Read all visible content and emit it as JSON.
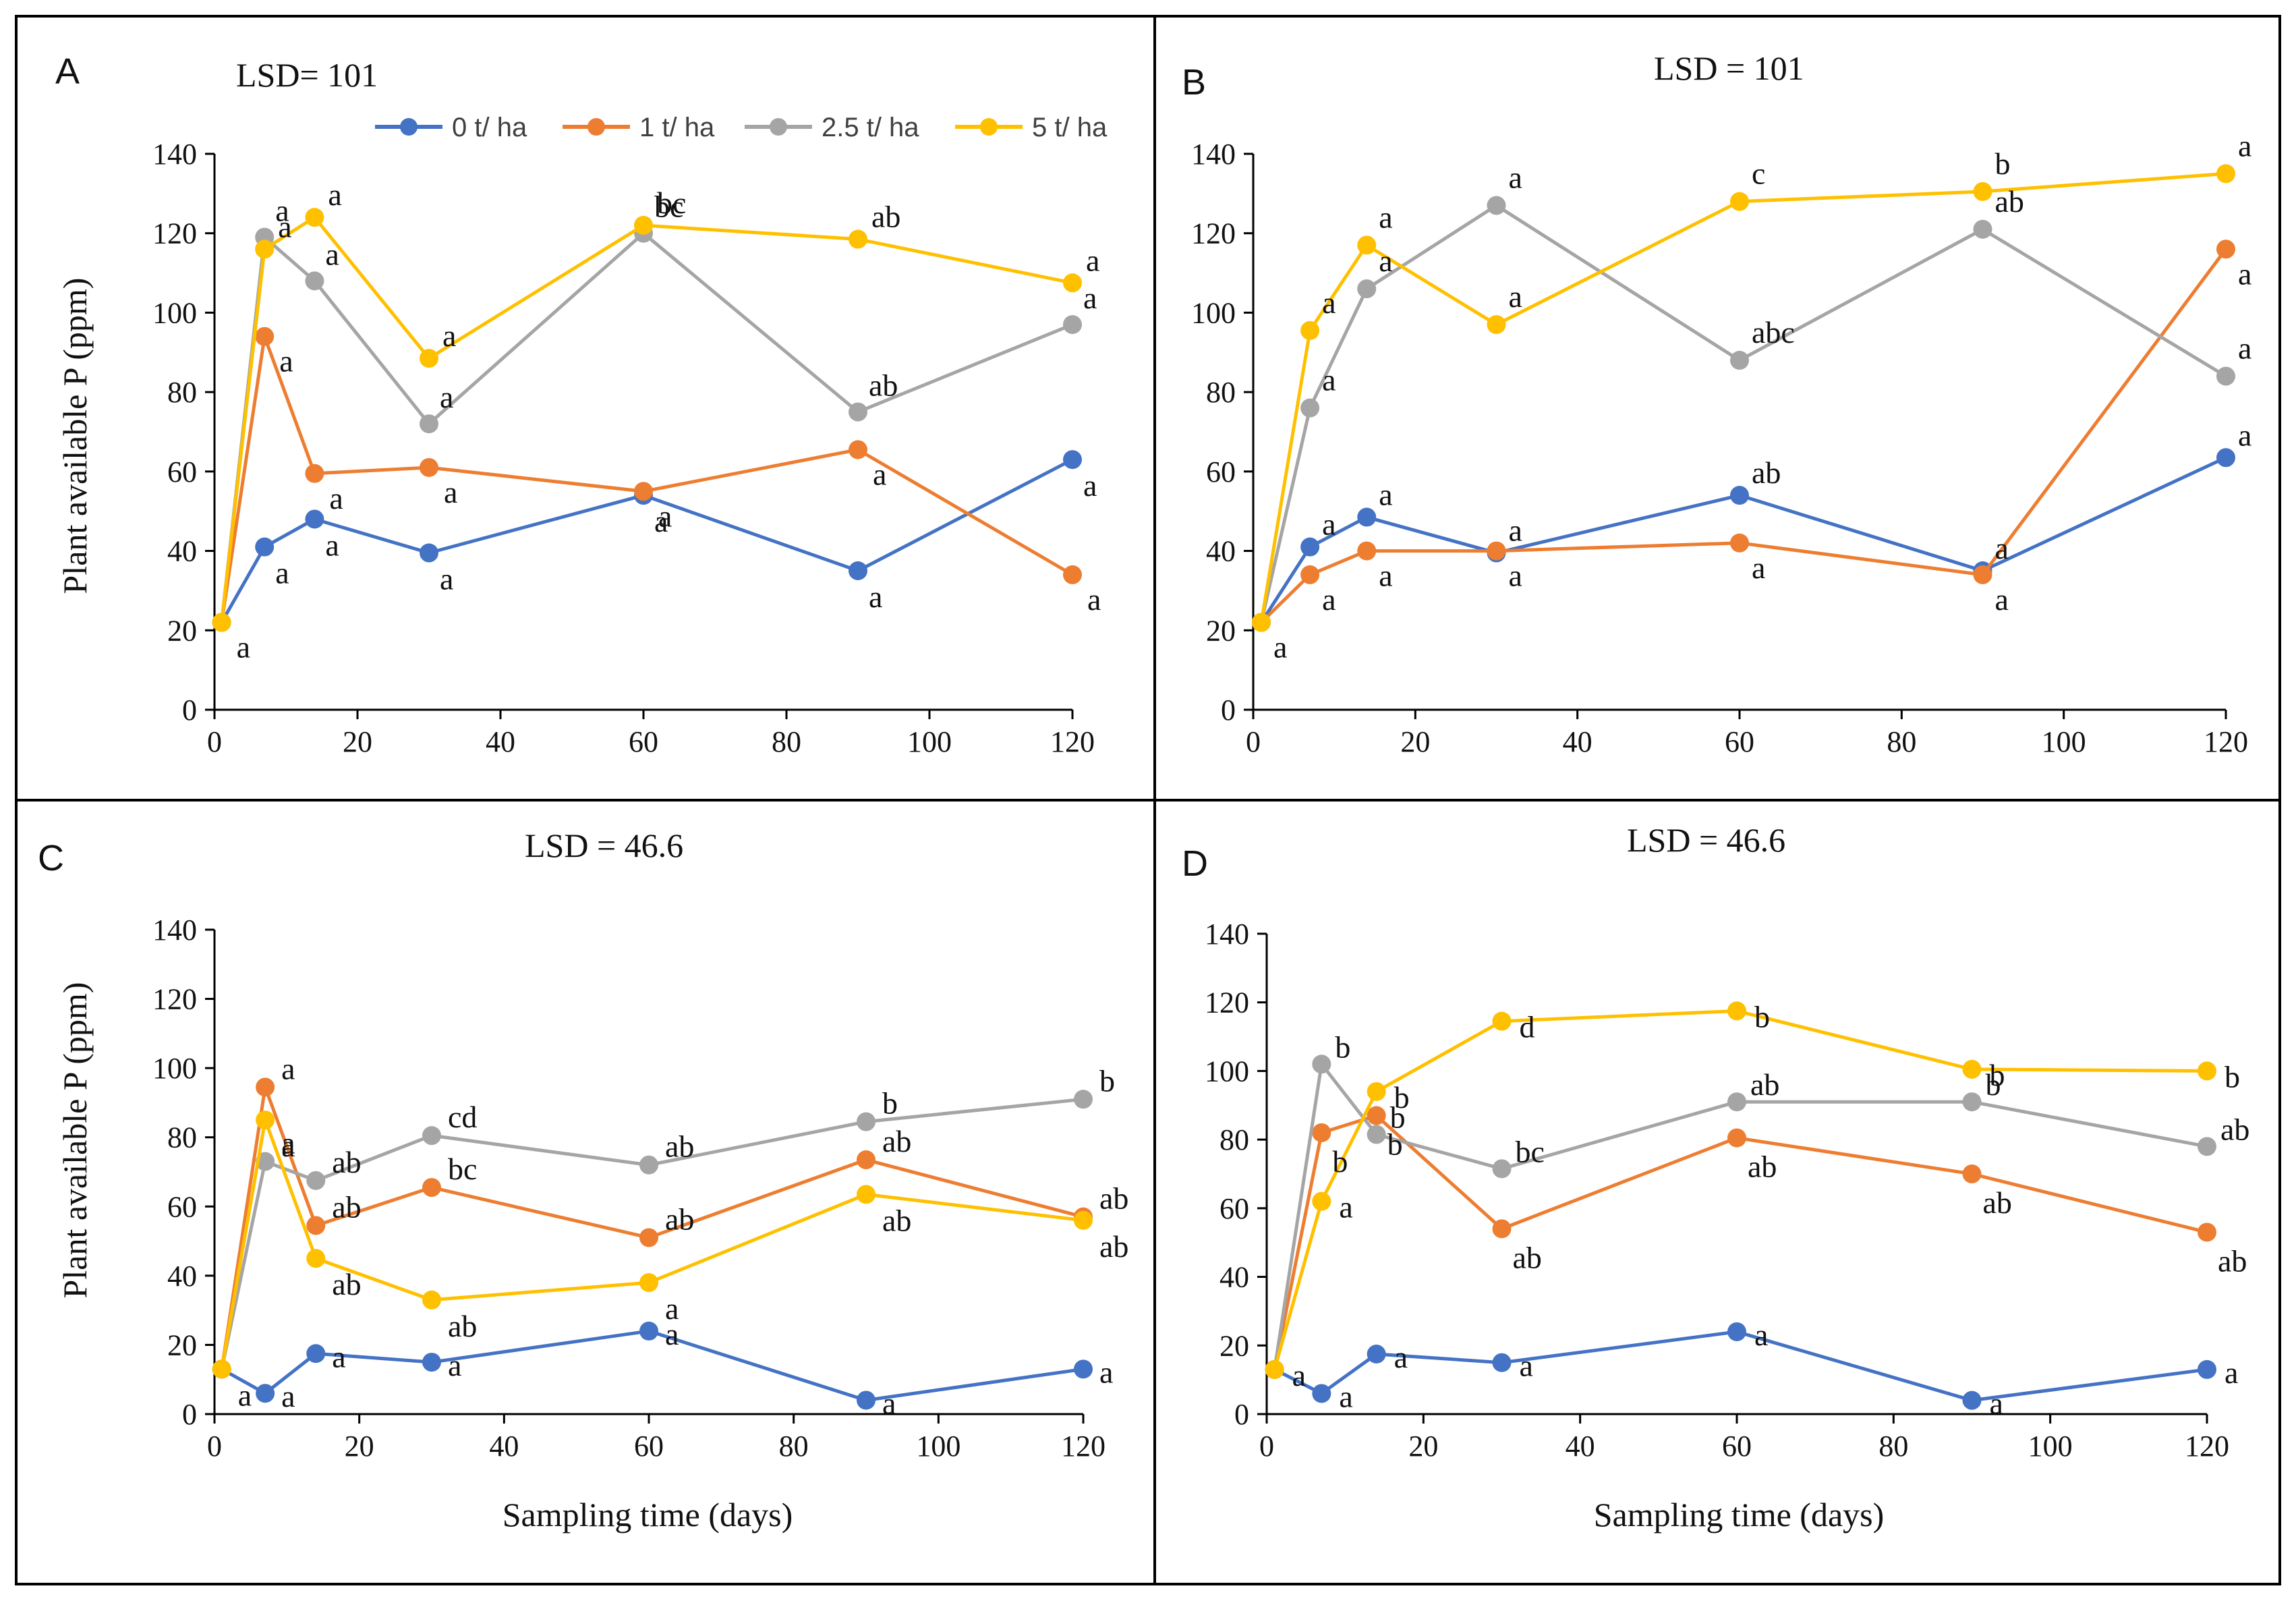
{
  "figure": {
    "legend": [
      {
        "label": "0 t/ ha",
        "color": "#4472C4"
      },
      {
        "label": "1 t/ ha",
        "color": "#ED7D31"
      },
      {
        "label": "2.5 t/ ha",
        "color": "#A5A5A5"
      },
      {
        "label": "5 t/ ha",
        "color": "#FFC000"
      }
    ],
    "y_axis_title": "Plant available P (ppm)",
    "x_axis_title": "Sampling time (days)"
  },
  "chart_data": [
    {
      "type": "line",
      "panel": "A",
      "title": "LSD= 101",
      "xlabel": "",
      "ylabel": "Plant available P (ppm)",
      "xlim": [
        0,
        120
      ],
      "ylim": [
        0,
        140
      ],
      "x_ticks": [
        0,
        20,
        40,
        60,
        80,
        100,
        120
      ],
      "y_ticks": [
        0,
        20,
        40,
        60,
        80,
        100,
        120,
        140
      ],
      "x": [
        1,
        7,
        14,
        30,
        60,
        90,
        120
      ],
      "series": [
        {
          "name": "0 t/ ha",
          "values": [
            22,
            41,
            48,
            39.5,
            54,
            35,
            63
          ],
          "labels": [
            "",
            "a",
            "a",
            "a",
            "a",
            "a",
            "a"
          ]
        },
        {
          "name": "1 t/ ha",
          "values": [
            22,
            94,
            59.5,
            61,
            55,
            65.5,
            34
          ],
          "labels": [
            "a",
            "a",
            "a",
            "a",
            "a",
            "a",
            "a"
          ]
        },
        {
          "name": "2.5 t/ ha",
          "values": [
            22,
            119,
            108,
            72,
            120,
            75,
            97
          ],
          "labels": [
            "",
            "a",
            "a",
            "a",
            "bc",
            "ab",
            "a"
          ]
        },
        {
          "name": "5 t/ ha",
          "values": [
            22,
            116,
            124,
            88.5,
            122,
            118.5,
            107.5
          ],
          "labels": [
            "",
            "a",
            "a",
            "a",
            "bc",
            "ab",
            "a"
          ]
        }
      ]
    },
    {
      "type": "line",
      "panel": "B",
      "title": "LSD = 101",
      "xlabel": "",
      "ylabel": "",
      "xlim": [
        0,
        120
      ],
      "ylim": [
        0,
        140
      ],
      "x_ticks": [
        0,
        20,
        40,
        60,
        80,
        100,
        120
      ],
      "y_ticks": [
        0,
        20,
        40,
        60,
        80,
        100,
        120,
        140
      ],
      "x": [
        1,
        7,
        14,
        30,
        60,
        90,
        120
      ],
      "series": [
        {
          "name": "0 t/ ha",
          "values": [
            22,
            41,
            48.5,
            39.5,
            54,
            35,
            63.5
          ],
          "labels": [
            "",
            "a",
            "a",
            "a",
            "ab",
            "a",
            "a"
          ]
        },
        {
          "name": "1 t/ ha",
          "values": [
            22,
            34,
            40,
            40,
            42,
            34,
            116
          ],
          "labels": [
            "a",
            "a",
            "a",
            "a",
            "a",
            "a",
            "a"
          ]
        },
        {
          "name": "2.5 t/ ha",
          "values": [
            22,
            76,
            106,
            127,
            88,
            121,
            84
          ],
          "labels": [
            "",
            "a",
            "a",
            "a",
            "abc",
            "ab",
            "a"
          ]
        },
        {
          "name": "5 t/ ha",
          "values": [
            22,
            95.5,
            117,
            97,
            128,
            130.5,
            135
          ],
          "labels": [
            "",
            "a",
            "a",
            "a",
            "c",
            "b",
            "a"
          ]
        }
      ]
    },
    {
      "type": "line",
      "panel": "C",
      "title": "LSD = 46.6",
      "xlabel": "Sampling time (days)",
      "ylabel": "Plant available P (ppm)",
      "xlim": [
        0,
        120
      ],
      "ylim": [
        0,
        140
      ],
      "x_ticks": [
        0,
        20,
        40,
        60,
        80,
        100,
        120
      ],
      "y_ticks": [
        0,
        20,
        40,
        60,
        80,
        100,
        120,
        140
      ],
      "x": [
        1,
        7,
        14,
        30,
        60,
        90,
        120
      ],
      "series": [
        {
          "name": "0 t/ ha",
          "values": [
            13,
            6,
            17.5,
            15,
            24,
            4,
            13
          ],
          "labels": [
            "",
            "a",
            "a",
            "a",
            "a",
            "a",
            "a"
          ]
        },
        {
          "name": "1 t/ ha",
          "values": [
            13,
            94.5,
            54.5,
            65.5,
            51,
            73.5,
            57
          ],
          "labels": [
            "",
            "a",
            "ab",
            "bc",
            "ab",
            "ab",
            "ab"
          ]
        },
        {
          "name": "2.5 t/ ha",
          "values": [
            13,
            73,
            67.5,
            80.5,
            72,
            84.5,
            91
          ],
          "labels": [
            "",
            "a",
            "ab",
            "cd",
            "ab",
            "b",
            "b"
          ]
        },
        {
          "name": "5 t/ ha",
          "values": [
            13,
            85,
            45,
            33,
            38,
            63.5,
            56
          ],
          "labels": [
            "a",
            "a",
            "ab",
            "ab",
            "a",
            "ab",
            "ab"
          ]
        }
      ]
    },
    {
      "type": "line",
      "panel": "D",
      "title": "LSD = 46.6",
      "xlabel": "Sampling time (days)",
      "ylabel": "",
      "xlim": [
        0,
        120
      ],
      "ylim": [
        0,
        140
      ],
      "x_ticks": [
        0,
        20,
        40,
        60,
        80,
        100,
        120
      ],
      "y_ticks": [
        0,
        20,
        40,
        60,
        80,
        100,
        120,
        140
      ],
      "x": [
        1,
        7,
        14,
        30,
        60,
        90,
        120
      ],
      "series": [
        {
          "name": "0 t/ ha",
          "values": [
            13,
            6,
            17.5,
            15,
            24,
            4,
            13
          ],
          "labels": [
            "",
            "a",
            "a",
            "a",
            "a",
            "a",
            "a"
          ]
        },
        {
          "name": "1 t/ ha",
          "values": [
            13,
            82,
            87,
            54,
            80.5,
            70,
            53
          ],
          "labels": [
            "",
            "b",
            "b",
            "ab",
            "ab",
            "ab",
            "ab"
          ]
        },
        {
          "name": "2.5 t/ ha",
          "values": [
            13,
            102,
            81.5,
            71.5,
            91,
            91,
            78
          ],
          "labels": [
            "",
            "b",
            "b",
            "bc",
            "ab",
            "b",
            "ab"
          ]
        },
        {
          "name": "5 t/ ha",
          "values": [
            13,
            62,
            94,
            114.5,
            117.5,
            100.5,
            100
          ],
          "labels": [
            "a",
            "a",
            "b",
            "d",
            "b",
            "b",
            "b"
          ]
        }
      ]
    }
  ]
}
